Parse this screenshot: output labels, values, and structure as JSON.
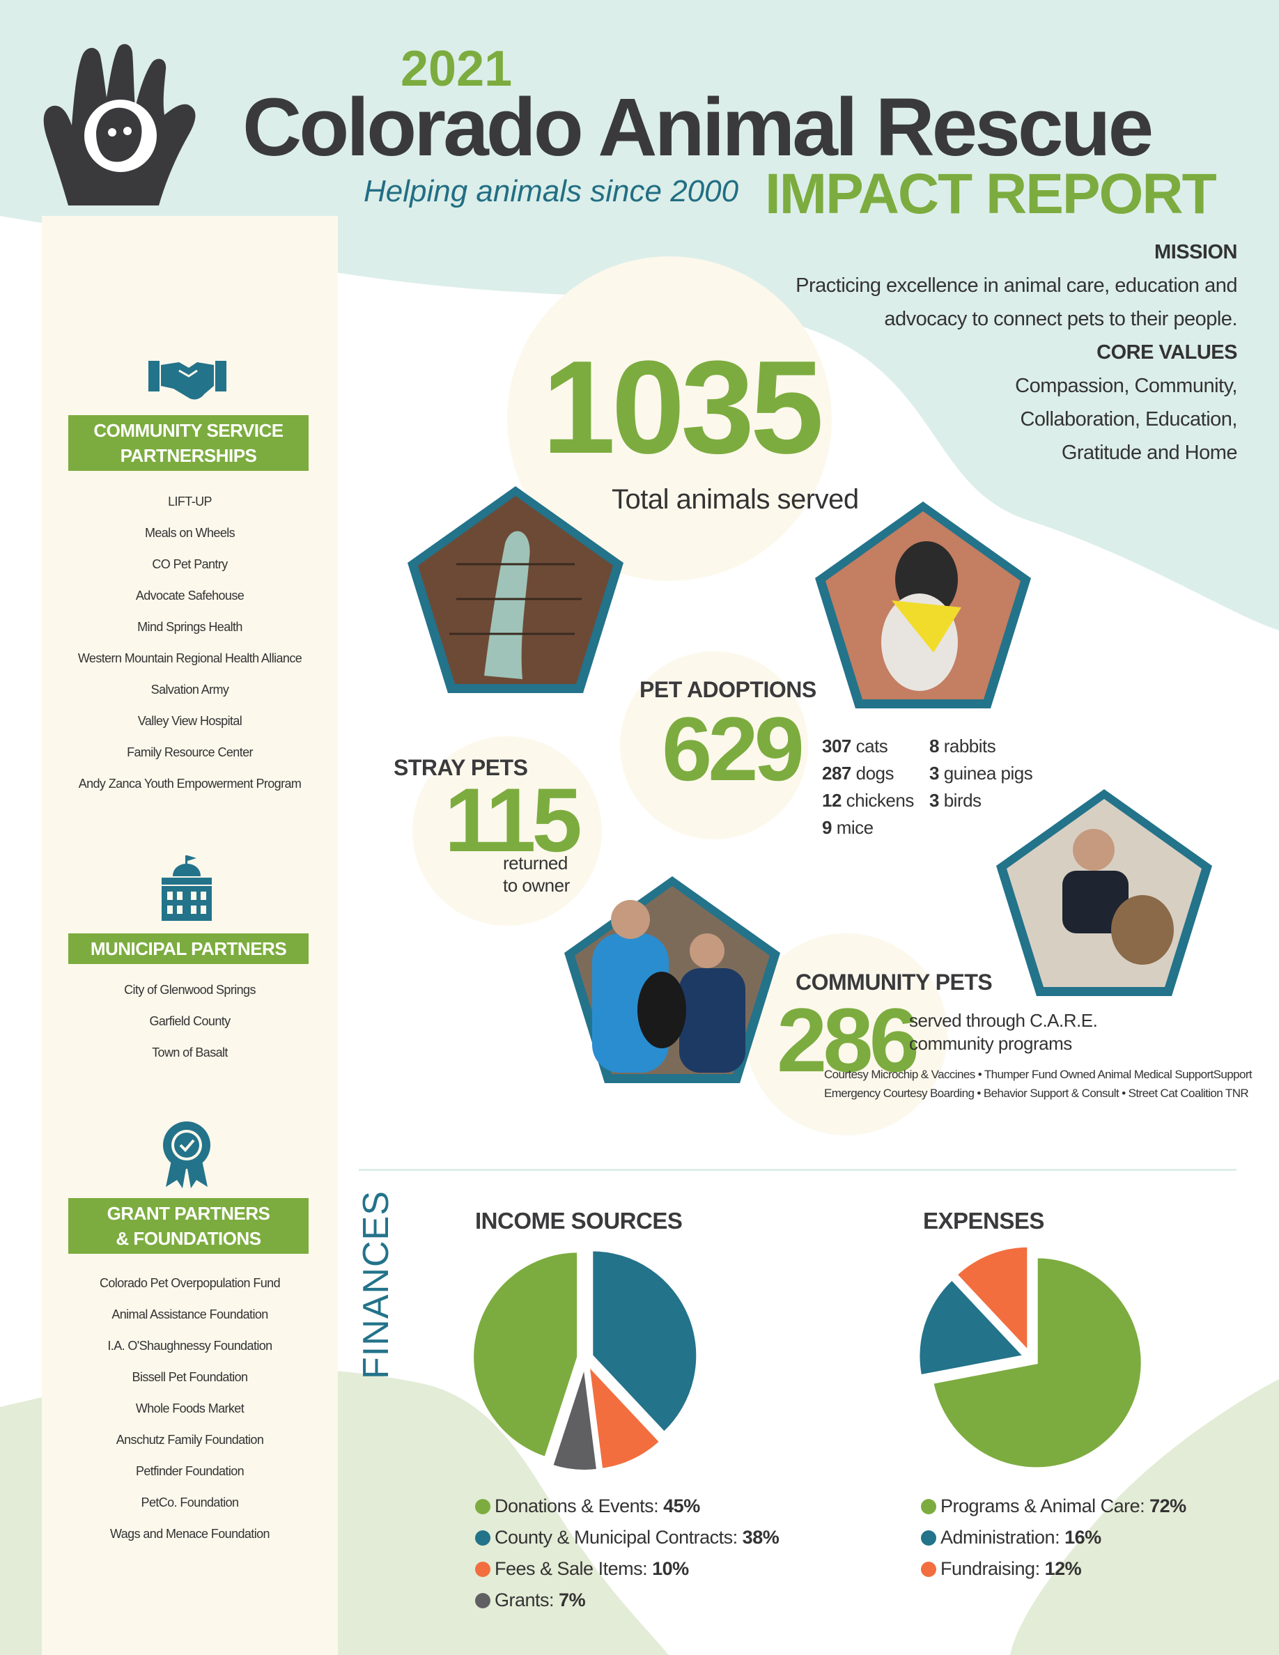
{
  "header": {
    "year": "2021",
    "org_name": "Colorado Animal Rescue",
    "tagline": "Helping animals since 2000",
    "report_title": "IMPACT REPORT"
  },
  "mission": {
    "heading": "MISSION",
    "line1": "Practicing excellence in animal care, education and",
    "line2": "advocacy to connect pets to their people.",
    "values_heading": "CORE VALUES",
    "values_line1": "Compassion, Community,",
    "values_line2": "Collaboration, Education,",
    "values_line3": "Gratitude and Home"
  },
  "sidebar": {
    "community": {
      "icon": "handshake-icon",
      "title_line1": "COMMUNITY SERVICE",
      "title_line2": "PARTNERSHIPS",
      "items": [
        "LIFT-UP",
        "Meals on Wheels",
        "CO Pet Pantry",
        "Advocate Safehouse",
        "Mind Springs Health",
        "Western Mountain Regional Health Alliance",
        "Salvation Army",
        "Valley View Hospital",
        "Family Resource Center",
        "Andy Zanca Youth Empowerment Program"
      ]
    },
    "municipal": {
      "icon": "government-building-icon",
      "title": "MUNICIPAL PARTNERS",
      "items": [
        "City of Glenwood Springs",
        "Garfield County",
        "Town of Basalt"
      ]
    },
    "grants": {
      "icon": "award-ribbon-icon",
      "title_line1": "GRANT PARTNERS",
      "title_line2": "& FOUNDATIONS",
      "items": [
        "Colorado Pet Overpopulation Fund",
        "Animal Assistance Foundation",
        "I.A. O'Shaughnessy Foundation",
        "Bissell Pet Foundation",
        "Whole Foods Market",
        "Anschutz Family Foundation",
        "Petfinder Foundation",
        "PetCo. Foundation",
        "Wags and Menace Foundation"
      ]
    }
  },
  "stats": {
    "total": {
      "value": "1035",
      "label": "Total animals served"
    },
    "adoptions": {
      "heading": "PET ADOPTIONS",
      "value": "629",
      "col1": [
        {
          "n": "307",
          "t": "cats"
        },
        {
          "n": "287",
          "t": "dogs"
        },
        {
          "n": "12",
          "t": "chickens"
        },
        {
          "n": "9",
          "t": "mice"
        }
      ],
      "col2": [
        {
          "n": "8",
          "t": "rabbits"
        },
        {
          "n": "3",
          "t": "guinea pigs"
        },
        {
          "n": "3",
          "t": "birds"
        }
      ]
    },
    "stray": {
      "heading": "STRAY PETS",
      "value": "115",
      "note1": "returned",
      "note2": "to owner"
    },
    "community": {
      "heading": "COMMUNITY PETS",
      "value": "286",
      "note1": "served through C.A.R.E.",
      "note2": "community programs",
      "programs1": "Courtesy Microchip & Vaccines • Thumper Fund Owned Animal Medical SupportSupport",
      "programs2": "Emergency Courtesy Boarding • Behavior Support & Consult • Street Cat Coalition TNR"
    }
  },
  "finances": {
    "section_label": "FINANCES",
    "colors": {
      "green": "#7cac3f",
      "teal": "#23738a",
      "orange": "#f26e3f",
      "gray": "#606062"
    }
  },
  "chart_data": [
    {
      "type": "pie",
      "title": "INCOME SOURCES",
      "categories": [
        "Donations & Events",
        "County & Municipal Contracts",
        "Fees & Sale Items",
        "Grants"
      ],
      "values": [
        45,
        38,
        10,
        7
      ],
      "value_labels": [
        "45%",
        "38%",
        "10%",
        "7%"
      ],
      "colors": [
        "#7cac3f",
        "#23738a",
        "#f26e3f",
        "#606062"
      ]
    },
    {
      "type": "pie",
      "title": "EXPENSES",
      "categories": [
        "Programs & Animal Care",
        "Administration",
        "Fundraising"
      ],
      "values": [
        72,
        16,
        12
      ],
      "value_labels": [
        "72%",
        "16%",
        "12%"
      ],
      "colors": [
        "#7cac3f",
        "#23738a",
        "#f26e3f"
      ]
    }
  ]
}
